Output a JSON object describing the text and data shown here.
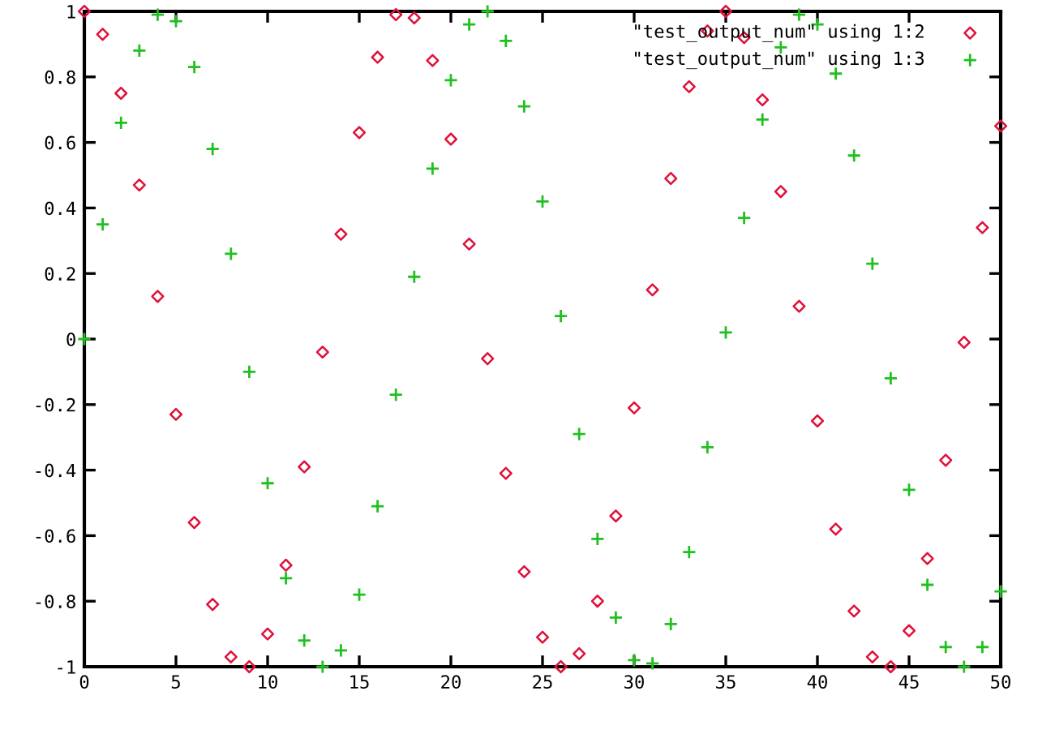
{
  "chart_data": {
    "type": "scatter",
    "x": [
      0,
      1,
      2,
      3,
      4,
      5,
      6,
      7,
      8,
      9,
      10,
      11,
      12,
      13,
      14,
      15,
      16,
      17,
      18,
      19,
      20,
      21,
      22,
      23,
      24,
      25,
      26,
      27,
      28,
      29,
      30,
      31,
      32,
      33,
      34,
      35,
      36,
      37,
      38,
      39,
      40,
      41,
      42,
      43,
      44,
      45,
      46,
      47,
      48,
      49,
      50
    ],
    "series": [
      {
        "name": "\"test_output_num\" using 1:2",
        "color": "#e0103a",
        "marker": "diamond",
        "values": [
          1.0,
          0.93,
          0.75,
          0.47,
          0.13,
          -0.23,
          -0.56,
          -0.81,
          -0.97,
          -1.0,
          -0.9,
          -0.69,
          -0.39,
          -0.04,
          0.32,
          0.63,
          0.86,
          0.99,
          0.98,
          0.85,
          0.61,
          0.29,
          -0.06,
          -0.41,
          -0.71,
          -0.91,
          -1.0,
          -0.96,
          -0.8,
          -0.54,
          -0.21,
          0.15,
          0.49,
          0.77,
          0.94,
          1.0,
          0.92,
          0.73,
          0.45,
          0.1,
          -0.25,
          -0.58,
          -0.83,
          -0.97,
          -1.0,
          -0.89,
          -0.67,
          -0.37,
          -0.01,
          0.34,
          0.65
        ]
      },
      {
        "name": "\"test_output_num\" using 1:3",
        "color": "#20c020",
        "marker": "cross",
        "values": [
          0.0,
          0.35,
          0.66,
          0.88,
          0.99,
          0.97,
          0.83,
          0.58,
          0.26,
          -0.1,
          -0.44,
          -0.73,
          -0.92,
          -1.0,
          -0.95,
          -0.78,
          -0.51,
          -0.17,
          0.19,
          0.52,
          0.79,
          0.96,
          1.0,
          0.91,
          0.71,
          0.42,
          0.07,
          -0.29,
          -0.61,
          -0.85,
          -0.98,
          -0.99,
          -0.87,
          -0.65,
          -0.33,
          0.02,
          0.37,
          0.67,
          0.89,
          0.99,
          0.96,
          0.81,
          0.56,
          0.23,
          -0.12,
          -0.46,
          -0.75,
          -0.94,
          -1.0,
          -0.94,
          -0.77
        ]
      }
    ],
    "xlim": [
      0,
      50
    ],
    "xticks": [
      0,
      5,
      10,
      15,
      20,
      25,
      30,
      35,
      40,
      45,
      50
    ],
    "ylim": [
      -1,
      1
    ],
    "yticks": [
      -1,
      -0.8,
      -0.6,
      -0.4,
      -0.2,
      0,
      0.2,
      0.4,
      0.6,
      0.8,
      1
    ],
    "grid": false,
    "legend": "top right"
  }
}
